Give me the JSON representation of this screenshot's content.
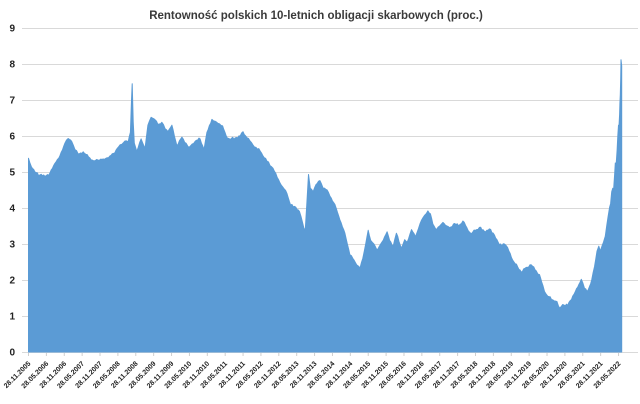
{
  "title": "Rentowność polskich 10-letnich obligacji skarbowych (proc.)",
  "colors": {
    "area": "#5B9BD5",
    "grid": "#D9D9D9",
    "tick_text": "#222222",
    "title_text": "#3A3A3A",
    "background": "#FFFFFF"
  },
  "chart_data": {
    "type": "area",
    "title": "Rentowność polskich 10-letnich obligacji skarbowych (proc.)",
    "xlabel": "",
    "ylabel": "",
    "legend": "none",
    "grid": "horizontal",
    "ylim": [
      0,
      9
    ],
    "xlim": [
      2005.907,
      2022.55
    ],
    "y_ticks": [
      0,
      1,
      2,
      3,
      4,
      5,
      6,
      7,
      8,
      9
    ],
    "x_tick_labels": [
      "28.11.2005",
      "28.05.2006",
      "28.11.2006",
      "28.05.2007",
      "28.11.2007",
      "28.05.2008",
      "28.11.2008",
      "28.05.2009",
      "28.11.2009",
      "28.05.2010",
      "28.11.2010",
      "28.05.2011",
      "28.11.2011",
      "28.05.2012",
      "28.11.2012",
      "28.05.2013",
      "28.11.2013",
      "28.05.2014",
      "28.11.2014",
      "28.05.2015",
      "28.11.2015",
      "28.05.2016",
      "28.11.2016",
      "28.05.2017",
      "28.11.2017",
      "28.05.2018",
      "28.11.2018",
      "28.05.2019",
      "28.11.2019",
      "28.05.2020",
      "28.11.2020",
      "28.05.2021",
      "28.11.2021",
      "28.05.2022"
    ],
    "x_tick_interval_years": 0.5,
    "series": [
      {
        "name": "Rentowność 10-letnich obligacji skarbowych (proc.)",
        "points": [
          [
            2005.92,
            5.38
          ],
          [
            2006.0,
            5.15
          ],
          [
            2006.1,
            5.0
          ],
          [
            2006.24,
            4.92
          ],
          [
            2006.38,
            4.88
          ],
          [
            2006.52,
            4.97
          ],
          [
            2006.66,
            5.24
          ],
          [
            2006.8,
            5.45
          ],
          [
            2006.94,
            5.8
          ],
          [
            2007.03,
            5.93
          ],
          [
            2007.13,
            5.85
          ],
          [
            2007.22,
            5.62
          ],
          [
            2007.31,
            5.5
          ],
          [
            2007.45,
            5.56
          ],
          [
            2007.6,
            5.42
          ],
          [
            2007.74,
            5.31
          ],
          [
            2007.87,
            5.33
          ],
          [
            2008.01,
            5.36
          ],
          [
            2008.16,
            5.4
          ],
          [
            2008.3,
            5.52
          ],
          [
            2008.44,
            5.7
          ],
          [
            2008.53,
            5.77
          ],
          [
            2008.62,
            5.86
          ],
          [
            2008.71,
            5.84
          ],
          [
            2008.77,
            6.1
          ],
          [
            2008.8,
            7.0
          ],
          [
            2008.82,
            7.45
          ],
          [
            2008.85,
            6.4
          ],
          [
            2008.88,
            5.8
          ],
          [
            2008.95,
            5.57
          ],
          [
            2009.07,
            5.92
          ],
          [
            2009.18,
            5.65
          ],
          [
            2009.26,
            6.3
          ],
          [
            2009.35,
            6.52
          ],
          [
            2009.46,
            6.45
          ],
          [
            2009.54,
            6.32
          ],
          [
            2009.65,
            6.38
          ],
          [
            2009.74,
            6.2
          ],
          [
            2009.82,
            6.12
          ],
          [
            2009.93,
            6.3
          ],
          [
            2010.07,
            5.73
          ],
          [
            2010.21,
            5.97
          ],
          [
            2010.41,
            5.68
          ],
          [
            2010.58,
            5.85
          ],
          [
            2010.72,
            5.92
          ],
          [
            2010.83,
            5.62
          ],
          [
            2010.91,
            6.1
          ],
          [
            2011.05,
            6.46
          ],
          [
            2011.22,
            6.35
          ],
          [
            2011.35,
            6.28
          ],
          [
            2011.45,
            6.0
          ],
          [
            2011.56,
            5.9
          ],
          [
            2011.7,
            5.95
          ],
          [
            2011.84,
            6.0
          ],
          [
            2011.92,
            6.12
          ],
          [
            2012.03,
            5.95
          ],
          [
            2012.2,
            5.75
          ],
          [
            2012.4,
            5.58
          ],
          [
            2012.59,
            5.3
          ],
          [
            2012.76,
            5.1
          ],
          [
            2012.95,
            4.7
          ],
          [
            2013.15,
            4.4
          ],
          [
            2013.25,
            4.08
          ],
          [
            2013.4,
            4.02
          ],
          [
            2013.5,
            3.9
          ],
          [
            2013.62,
            3.45
          ],
          [
            2013.66,
            3.36
          ],
          [
            2013.71,
            4.2
          ],
          [
            2013.75,
            4.93
          ],
          [
            2013.8,
            4.55
          ],
          [
            2013.88,
            4.45
          ],
          [
            2013.96,
            4.65
          ],
          [
            2014.07,
            4.76
          ],
          [
            2014.16,
            4.55
          ],
          [
            2014.27,
            4.5
          ],
          [
            2014.35,
            4.33
          ],
          [
            2014.49,
            4.1
          ],
          [
            2014.63,
            3.67
          ],
          [
            2014.77,
            3.3
          ],
          [
            2014.91,
            2.7
          ],
          [
            2014.99,
            2.6
          ],
          [
            2015.1,
            2.42
          ],
          [
            2015.19,
            2.33
          ],
          [
            2015.27,
            2.6
          ],
          [
            2015.35,
            3.0
          ],
          [
            2015.42,
            3.38
          ],
          [
            2015.49,
            3.1
          ],
          [
            2015.58,
            3.0
          ],
          [
            2015.68,
            2.84
          ],
          [
            2015.77,
            3.0
          ],
          [
            2015.88,
            3.2
          ],
          [
            2015.95,
            3.34
          ],
          [
            2016.02,
            3.1
          ],
          [
            2016.12,
            2.94
          ],
          [
            2016.21,
            3.3
          ],
          [
            2016.35,
            2.88
          ],
          [
            2016.44,
            3.12
          ],
          [
            2016.51,
            3.05
          ],
          [
            2016.63,
            3.4
          ],
          [
            2016.74,
            3.2
          ],
          [
            2016.91,
            3.66
          ],
          [
            2017.0,
            3.8
          ],
          [
            2017.09,
            3.92
          ],
          [
            2017.16,
            3.84
          ],
          [
            2017.23,
            3.55
          ],
          [
            2017.33,
            3.4
          ],
          [
            2017.42,
            3.5
          ],
          [
            2017.51,
            3.6
          ],
          [
            2017.62,
            3.5
          ],
          [
            2017.7,
            3.45
          ],
          [
            2017.84,
            3.57
          ],
          [
            2017.95,
            3.5
          ],
          [
            2018.07,
            3.64
          ],
          [
            2018.18,
            3.45
          ],
          [
            2018.3,
            3.28
          ],
          [
            2018.42,
            3.38
          ],
          [
            2018.53,
            3.46
          ],
          [
            2018.67,
            3.35
          ],
          [
            2018.81,
            3.42
          ],
          [
            2018.95,
            3.25
          ],
          [
            2019.09,
            2.98
          ],
          [
            2019.23,
            3.0
          ],
          [
            2019.32,
            2.9
          ],
          [
            2019.46,
            2.55
          ],
          [
            2019.6,
            2.36
          ],
          [
            2019.7,
            2.22
          ],
          [
            2019.84,
            2.35
          ],
          [
            2019.98,
            2.42
          ],
          [
            2020.12,
            2.25
          ],
          [
            2020.21,
            2.15
          ],
          [
            2020.27,
            1.95
          ],
          [
            2020.35,
            1.68
          ],
          [
            2020.44,
            1.55
          ],
          [
            2020.58,
            1.45
          ],
          [
            2020.7,
            1.4
          ],
          [
            2020.77,
            1.22
          ],
          [
            2020.86,
            1.32
          ],
          [
            2021.0,
            1.3
          ],
          [
            2021.14,
            1.55
          ],
          [
            2021.21,
            1.67
          ],
          [
            2021.28,
            1.8
          ],
          [
            2021.38,
            2.02
          ],
          [
            2021.47,
            1.77
          ],
          [
            2021.54,
            1.68
          ],
          [
            2021.61,
            1.82
          ],
          [
            2021.67,
            2.0
          ],
          [
            2021.75,
            2.37
          ],
          [
            2021.82,
            2.8
          ],
          [
            2021.87,
            2.94
          ],
          [
            2021.91,
            2.8
          ],
          [
            2021.96,
            2.95
          ],
          [
            2022.0,
            3.05
          ],
          [
            2022.05,
            3.22
          ],
          [
            2022.09,
            3.5
          ],
          [
            2022.13,
            3.76
          ],
          [
            2022.17,
            4.02
          ],
          [
            2022.2,
            4.12
          ],
          [
            2022.23,
            4.45
          ],
          [
            2022.26,
            4.55
          ],
          [
            2022.28,
            4.47
          ],
          [
            2022.31,
            4.92
          ],
          [
            2022.33,
            5.25
          ],
          [
            2022.35,
            5.15
          ],
          [
            2022.38,
            5.6
          ],
          [
            2022.4,
            6.0
          ],
          [
            2022.42,
            6.3
          ],
          [
            2022.43,
            6.22
          ],
          [
            2022.45,
            6.6
          ],
          [
            2022.46,
            6.9
          ],
          [
            2022.47,
            7.15
          ],
          [
            2022.48,
            7.6
          ],
          [
            2022.49,
            8.12
          ],
          [
            2022.51,
            7.95
          ]
        ]
      }
    ]
  }
}
